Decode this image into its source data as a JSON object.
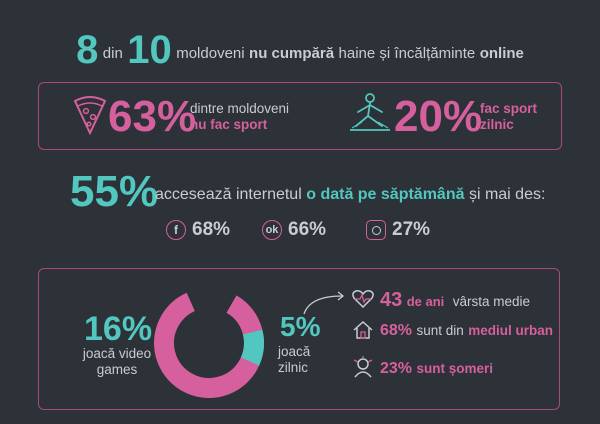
{
  "headline": {
    "num1": "8",
    "din": "din",
    "num2": "10",
    "text_a": "moldoveni",
    "text_b": "nu cumpără",
    "text_c": "haine și încălțăminte",
    "text_d": "online"
  },
  "sport": {
    "left_value": "63%",
    "left_line1": "dintre moldoveni",
    "left_line2": "nu fac sport",
    "right_value": "20%",
    "right_line1": "fac sport",
    "right_line2": "zilnic"
  },
  "internet": {
    "value": "55%",
    "text_a": "accesează internetul",
    "text_b": "o dată pe săptămână",
    "text_c": "și mai des:",
    "networks": [
      {
        "icon": "facebook-icon",
        "glyph": "f",
        "value": "68%"
      },
      {
        "icon": "odnoklassniki-icon",
        "glyph": "ok",
        "value": "66%"
      },
      {
        "icon": "instagram-icon",
        "glyph": "ig",
        "value": "27%"
      }
    ]
  },
  "games": {
    "left_value": "16%",
    "left_line1": "joacă video",
    "left_line2": "games",
    "daily_value": "5%",
    "daily_line1": "joacă",
    "daily_line2": "zilnic",
    "donut_fraction": 0.16,
    "donut_daily_fraction": 0.05
  },
  "facts": [
    {
      "icon": "heart-pulse-icon",
      "value": "43",
      "unit": "de ani",
      "text": "vârsta medie"
    },
    {
      "icon": "house-icon",
      "value": "68%",
      "unit": "",
      "text": "sunt din",
      "text_bold": "mediul urban"
    },
    {
      "icon": "stress-icon",
      "value": "23%",
      "unit": "",
      "text": "sunt șomeri"
    }
  ],
  "colors": {
    "teal": "#52c7bf",
    "pink": "#d6609e",
    "background": "#2d3138"
  }
}
